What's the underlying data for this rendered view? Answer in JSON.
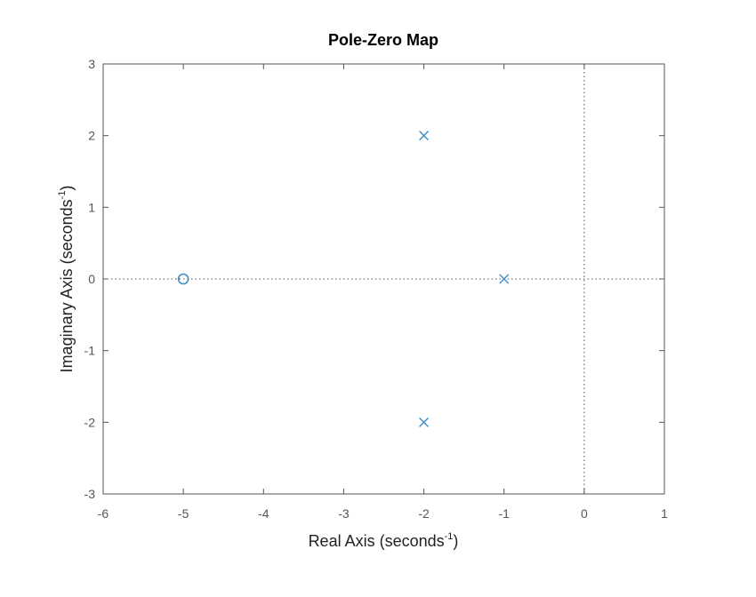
{
  "chart_data": {
    "type": "scatter",
    "title": "Pole-Zero Map",
    "xlabel": {
      "text": "Real Axis (seconds",
      "sup": "-1",
      "suffix": ")"
    },
    "ylabel": {
      "text": "Imaginary Axis (seconds",
      "sup": "-1",
      "suffix": ")"
    },
    "xlim": [
      -6,
      1
    ],
    "ylim": [
      -3,
      3
    ],
    "xticks": [
      -6,
      -5,
      -4,
      -3,
      -2,
      -1,
      0,
      1
    ],
    "yticks": [
      -3,
      -2,
      -1,
      0,
      1,
      2,
      3
    ],
    "grid": false,
    "reference_lines": {
      "x": 0,
      "y": 0,
      "style": "dotted"
    },
    "series": [
      {
        "marker": "x",
        "points": [
          {
            "x": -2,
            "y": 2
          },
          {
            "x": -1,
            "y": 0
          },
          {
            "x": -2,
            "y": -2
          }
        ]
      },
      {
        "marker": "o",
        "points": [
          {
            "x": -5,
            "y": 0
          }
        ]
      }
    ],
    "colors": {
      "marker": "#3a8fc7",
      "axes": "#555555",
      "reference": "#555555"
    }
  }
}
